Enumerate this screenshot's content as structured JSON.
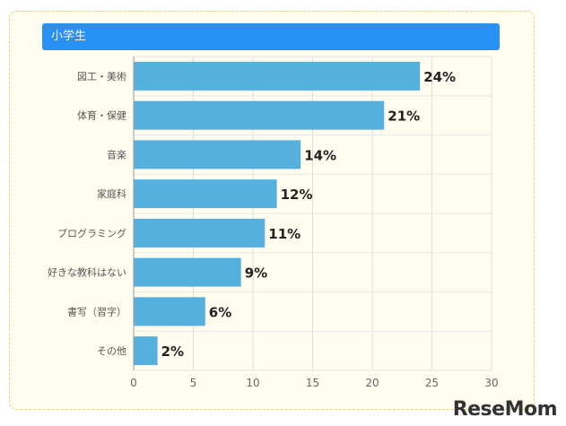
{
  "chart_data": {
    "type": "bar",
    "orientation": "horizontal",
    "title": "小学生",
    "categories": [
      "図工・美術",
      "体育・保健",
      "音楽",
      "家庭科",
      "プログラミング",
      "好きな教科はない",
      "書写（習字）",
      "その他"
    ],
    "values": [
      24,
      21,
      14,
      12,
      11,
      9,
      6,
      2
    ],
    "value_labels": [
      "24%",
      "21%",
      "14%",
      "12%",
      "11%",
      "9%",
      "6%",
      "2%"
    ],
    "xlim": [
      0,
      30
    ],
    "xticks": [
      0,
      5,
      10,
      15,
      20,
      25,
      30
    ],
    "xlabel": "",
    "ylabel": "",
    "grid": true,
    "bar_color": "#56b0de",
    "header_color": "#2791f5",
    "panel_color": "#fffdf0"
  },
  "logo": {
    "text_main": "ReseMom",
    "text_dot": "."
  }
}
